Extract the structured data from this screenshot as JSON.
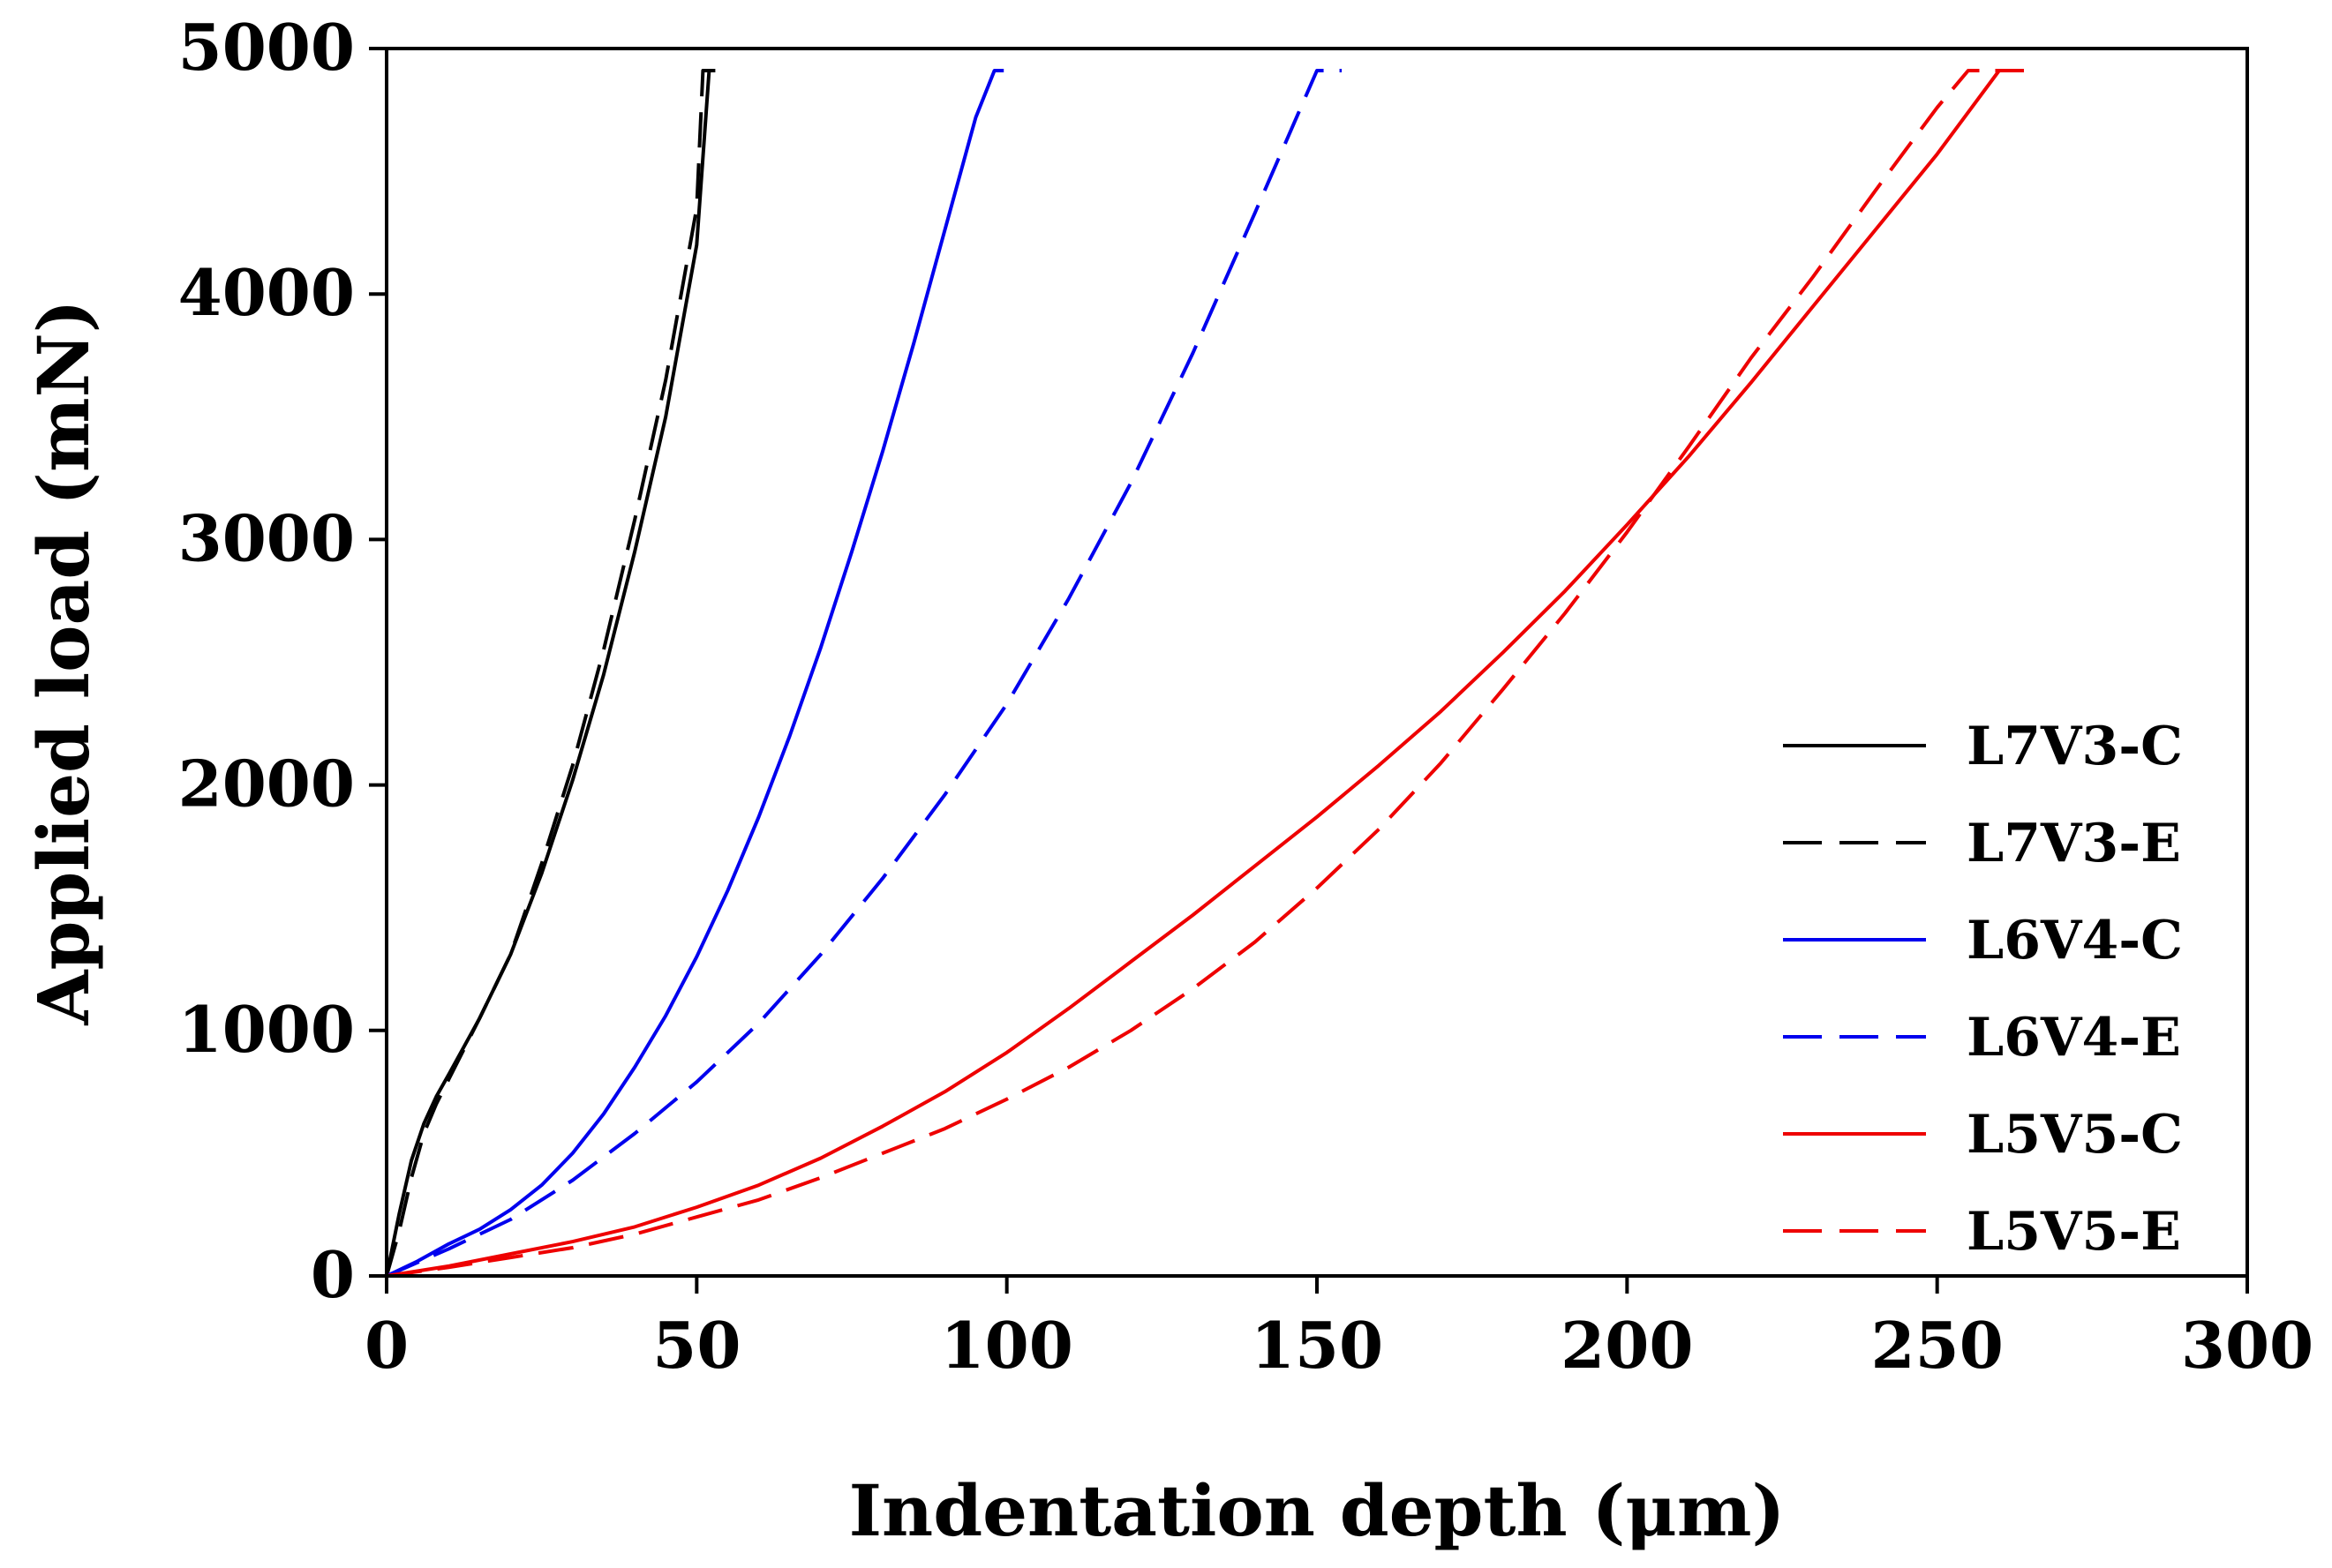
{
  "chart_data": {
    "type": "line",
    "title": "",
    "xlabel": "Indentation depth (μm)",
    "ylabel": "Applied load (mN)",
    "xlim": [
      0,
      300
    ],
    "ylim": [
      0,
      5000
    ],
    "xticks": [
      0,
      50,
      100,
      150,
      200,
      250,
      300
    ],
    "yticks": [
      0,
      1000,
      2000,
      3000,
      4000,
      5000
    ],
    "xtick_labels": [
      "0",
      "50",
      "100",
      "150",
      "200",
      "250",
      "300"
    ],
    "ytick_labels": [
      "0",
      "1000",
      "2000",
      "3000",
      "4000",
      "5000"
    ],
    "grid": false,
    "legend_position": "right",
    "series": [
      {
        "name": "L7V3-C",
        "color": "#000000",
        "style": "solid",
        "x": [
          0,
          2,
          4,
          6,
          8,
          10,
          15,
          20,
          25,
          30,
          35,
          40,
          45,
          50,
          52,
          53
        ],
        "y": [
          0,
          250,
          470,
          620,
          730,
          820,
          1050,
          1310,
          1640,
          2020,
          2450,
          2950,
          3500,
          4200,
          4910,
          4910
        ]
      },
      {
        "name": "L7V3-E",
        "color": "#000000",
        "style": "dashed",
        "x": [
          0,
          2,
          4,
          6,
          8,
          10,
          15,
          20,
          25,
          30,
          35,
          40,
          45,
          50,
          51,
          52
        ],
        "y": [
          0,
          180,
          400,
          580,
          700,
          800,
          1050,
          1310,
          1680,
          2080,
          2550,
          3080,
          3650,
          4350,
          4910,
          4910
        ]
      },
      {
        "name": "L6V4-C",
        "color": "#0000ee",
        "style": "solid",
        "x": [
          0,
          5,
          10,
          15,
          20,
          25,
          30,
          35,
          40,
          45,
          50,
          55,
          60,
          65,
          70,
          75,
          80,
          85,
          90,
          95,
          98,
          99.5
        ],
        "y": [
          0,
          60,
          130,
          190,
          270,
          370,
          500,
          660,
          850,
          1060,
          1300,
          1570,
          1870,
          2200,
          2560,
          2950,
          3360,
          3800,
          4260,
          4720,
          4910,
          4910
        ]
      },
      {
        "name": "L6V4-E",
        "color": "#0000ee",
        "style": "dashed",
        "x": [
          0,
          10,
          20,
          30,
          40,
          50,
          60,
          70,
          80,
          90,
          100,
          110,
          120,
          130,
          140,
          150,
          152,
          154
        ],
        "y": [
          0,
          110,
          230,
          390,
          580,
          790,
          1030,
          1310,
          1620,
          1960,
          2330,
          2760,
          3230,
          3760,
          4330,
          4910,
          4910,
          4910
        ]
      },
      {
        "name": "L5V5-C",
        "color": "#ee0000",
        "style": "solid",
        "x": [
          0,
          10,
          20,
          30,
          40,
          50,
          60,
          70,
          80,
          90,
          100,
          110,
          120,
          130,
          140,
          150,
          160,
          170,
          180,
          190,
          200,
          210,
          220,
          230,
          240,
          250,
          260,
          262
        ],
        "y": [
          0,
          40,
          90,
          140,
          200,
          280,
          370,
          480,
          610,
          750,
          910,
          1090,
          1280,
          1470,
          1670,
          1870,
          2080,
          2300,
          2540,
          2790,
          3060,
          3340,
          3640,
          3950,
          4260,
          4570,
          4910,
          4910
        ]
      },
      {
        "name": "L5V5-E",
        "color": "#ee0000",
        "style": "dashed",
        "x": [
          0,
          10,
          20,
          30,
          40,
          50,
          60,
          70,
          80,
          90,
          100,
          110,
          120,
          130,
          140,
          150,
          160,
          170,
          180,
          190,
          200,
          210,
          220,
          230,
          240,
          250,
          255,
          258,
          264
        ],
        "y": [
          0,
          35,
          75,
          115,
          170,
          240,
          310,
          400,
          500,
          600,
          720,
          850,
          1000,
          1170,
          1360,
          1580,
          1820,
          2090,
          2390,
          2700,
          3030,
          3380,
          3740,
          4070,
          4420,
          4760,
          4910,
          4910,
          4910
        ]
      }
    ]
  }
}
